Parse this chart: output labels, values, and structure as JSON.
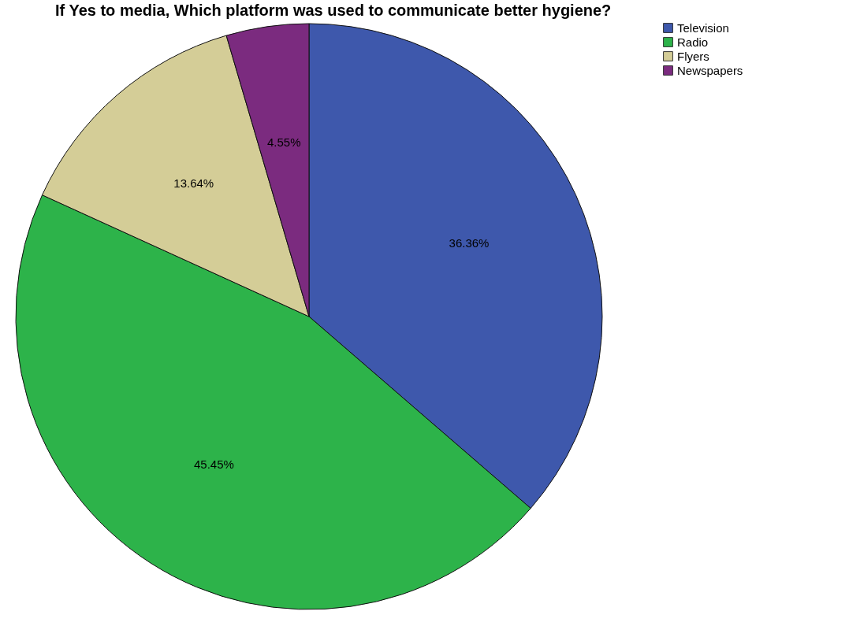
{
  "chart_data": {
    "type": "pie",
    "title": "If Yes to media, Which platform was used to communicate better hygiene?",
    "categories": [
      "Television",
      "Radio",
      "Flyers",
      "Newspapers"
    ],
    "values": [
      36.36,
      45.45,
      13.64,
      4.55
    ],
    "colors": [
      "#3e58ac",
      "#2db34a",
      "#d4cd97",
      "#7b2b7f"
    ],
    "value_labels": [
      "36.36%",
      "45.45%",
      "13.64%",
      "4.55%"
    ],
    "legend": "top right"
  }
}
